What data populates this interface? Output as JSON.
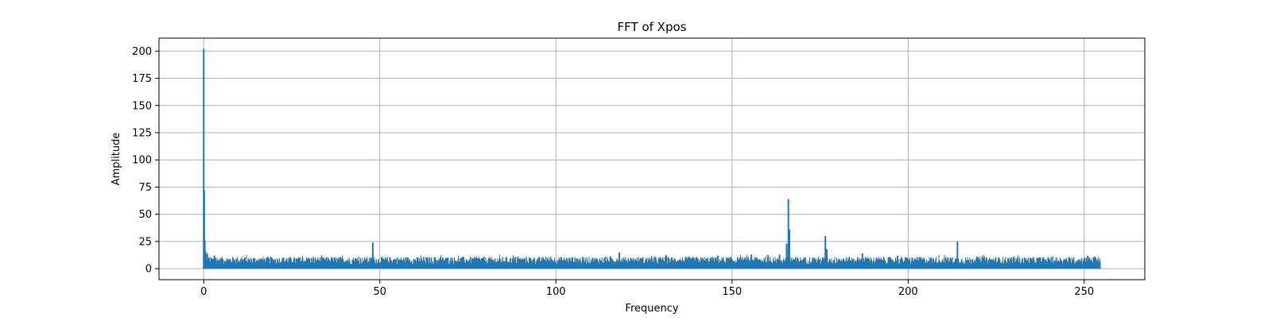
{
  "chart_data": {
    "type": "line",
    "title": "FFT of Xpos",
    "xlabel": "Frequency",
    "ylabel": "Amplitude",
    "xlim": [
      -12.7,
      267.2
    ],
    "ylim": [
      -10.1,
      211.9
    ],
    "x_ticks": [
      0,
      50,
      100,
      150,
      200,
      250
    ],
    "y_ticks": [
      0,
      25,
      50,
      75,
      100,
      125,
      150,
      175,
      200
    ],
    "x_tick_labels": [
      "0",
      "50",
      "100",
      "150",
      "200",
      "250"
    ],
    "y_tick_labels": [
      "0",
      "25",
      "50",
      "75",
      "100",
      "125",
      "150",
      "175",
      "200"
    ],
    "grid": true,
    "line_color": "#1f77b4",
    "series": [
      {
        "x_range": [
          0,
          254.5
        ],
        "baseline_min": 0,
        "baseline_max": 9,
        "peaks": [
          {
            "x": 0.0,
            "y": 202
          },
          {
            "x": 0.15,
            "y": 72
          },
          {
            "x": 0.3,
            "y": 26
          },
          {
            "x": 0.5,
            "y": 16
          },
          {
            "x": 1.0,
            "y": 14
          },
          {
            "x": 3.0,
            "y": 12
          },
          {
            "x": 48.0,
            "y": 24
          },
          {
            "x": 118.0,
            "y": 15
          },
          {
            "x": 146.0,
            "y": 12
          },
          {
            "x": 155.5,
            "y": 13
          },
          {
            "x": 163.5,
            "y": 13
          },
          {
            "x": 165.5,
            "y": 23
          },
          {
            "x": 166.0,
            "y": 64
          },
          {
            "x": 166.3,
            "y": 36
          },
          {
            "x": 176.5,
            "y": 30
          },
          {
            "x": 176.9,
            "y": 18
          },
          {
            "x": 187.0,
            "y": 14
          },
          {
            "x": 197.0,
            "y": 12
          },
          {
            "x": 214.0,
            "y": 25
          },
          {
            "x": 219.5,
            "y": 11
          },
          {
            "x": 251.0,
            "y": 12
          },
          {
            "x": 253.0,
            "y": 11
          }
        ]
      }
    ]
  }
}
